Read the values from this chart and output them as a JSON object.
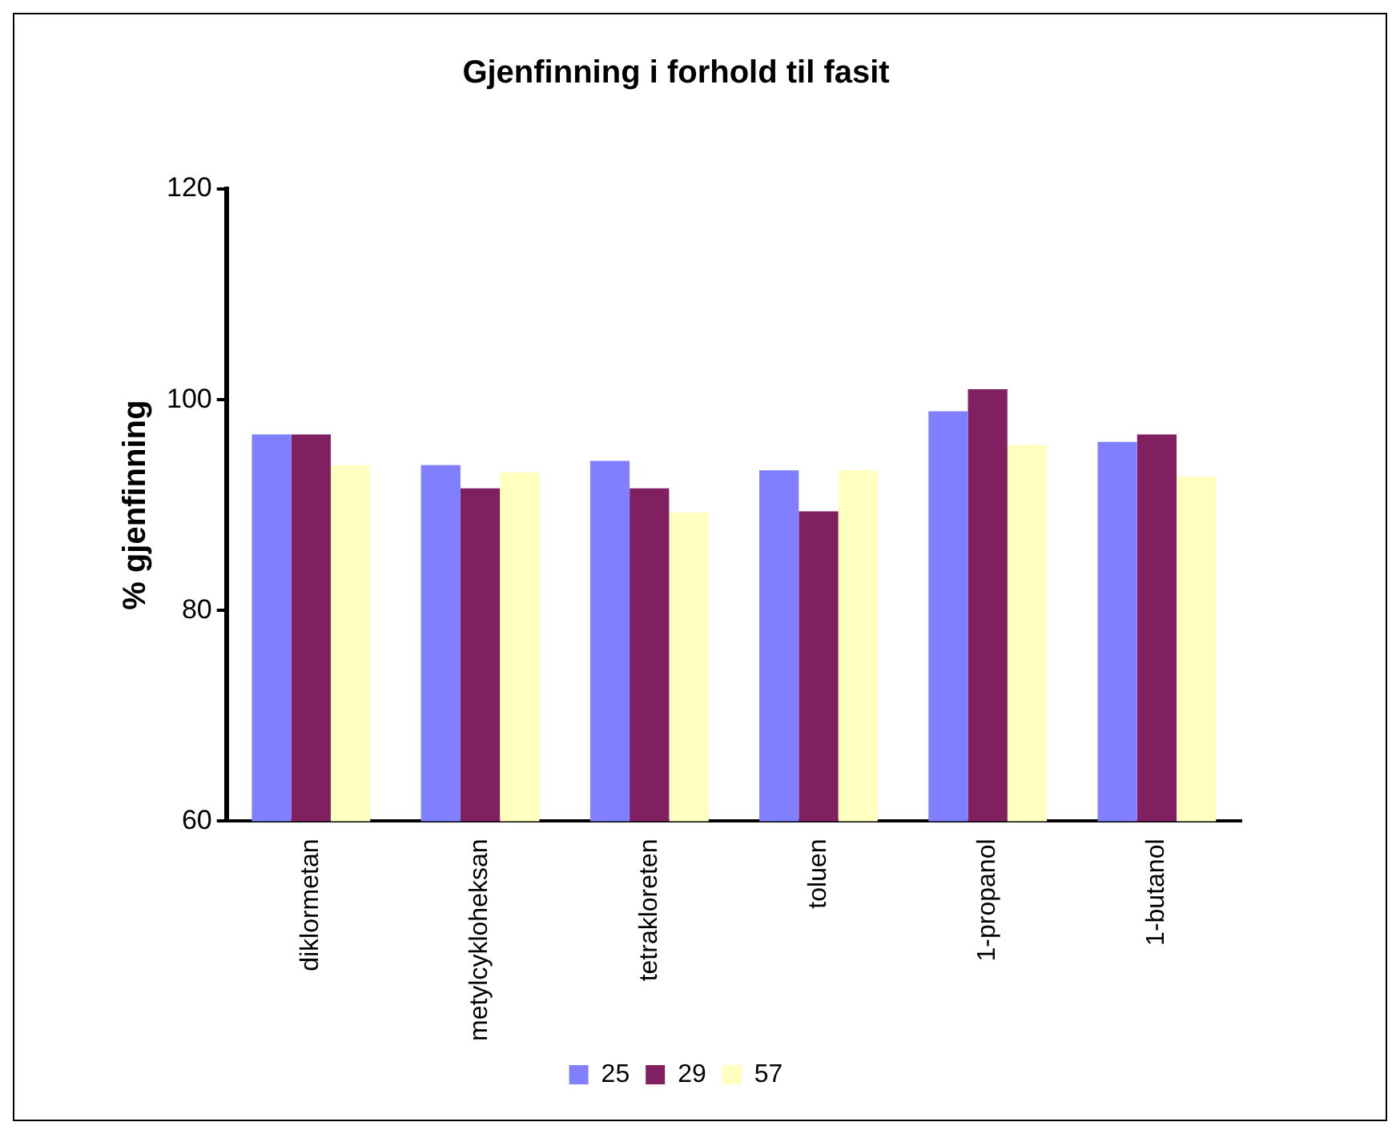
{
  "chart_data": {
    "type": "bar",
    "title": "Gjenfinning i forhold til fasit",
    "ylabel": "% gjenfinning",
    "categories": [
      "diklormetan",
      "metylcykloheksan",
      "tetrakloreten",
      "toluen",
      "1-propanol",
      "1-butanol"
    ],
    "series": [
      {
        "name": "25",
        "color": "#8080ff",
        "values": [
          96.7,
          93.8,
          94.2,
          93.3,
          98.9,
          96.0
        ]
      },
      {
        "name": "29",
        "color": "#802060",
        "values": [
          96.7,
          91.6,
          91.6,
          89.4,
          101.0,
          96.7
        ]
      },
      {
        "name": "57",
        "color": "#ffffc0",
        "values": [
          93.8,
          93.1,
          89.3,
          93.3,
          95.7,
          92.7
        ]
      }
    ],
    "ylim": [
      60,
      120
    ],
    "yticks": [
      60,
      80,
      100,
      120
    ],
    "grid": false,
    "legend": "bottom"
  }
}
